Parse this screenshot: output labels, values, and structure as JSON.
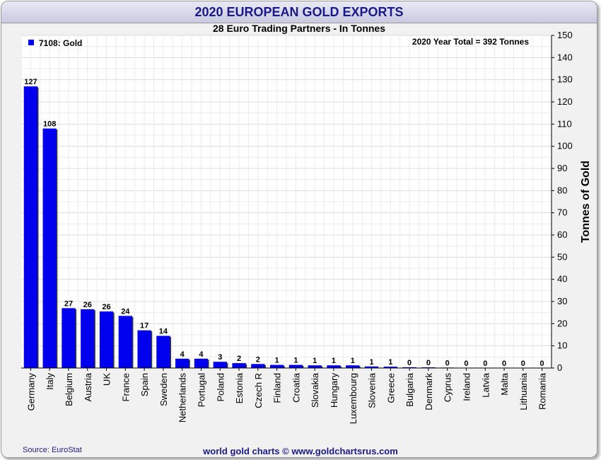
{
  "chart_data": {
    "type": "bar",
    "title": "2020 EUROPEAN GOLD EXPORTS",
    "subtitle": "28 Euro Trading Partners - In Tonnes",
    "ylabel": "Tonnes of Gold",
    "ylim": [
      0,
      150
    ],
    "yticks": [
      0,
      10,
      20,
      30,
      40,
      50,
      60,
      70,
      80,
      90,
      100,
      110,
      120,
      130,
      140,
      150
    ],
    "grid": true,
    "legend_position": "top-left",
    "categories": [
      "Germany",
      "Italy",
      "Belgium",
      "Austria",
      "UK",
      "France",
      "Spain",
      "Sweden",
      "Netherlands",
      "Portugal",
      "Poland",
      "Estonia",
      "Czech R",
      "Finland",
      "Croatia",
      "Slovakia",
      "Hungary",
      "Luxembourg",
      "Slovenia",
      "Greece",
      "Bulgaria",
      "Denmark",
      "Cyprus",
      "Ireland",
      "Latvia",
      "Malta",
      "Lithuania",
      "Romania"
    ],
    "series": [
      {
        "name": "7108: Gold",
        "color": "#0000ee",
        "values": [
          127,
          108,
          27,
          26,
          26,
          24,
          17,
          14,
          4,
          4,
          3,
          2,
          2,
          1,
          1,
          1,
          1,
          1,
          1,
          1,
          0,
          0,
          0,
          0,
          0,
          0,
          0,
          0
        ],
        "bar_values": [
          127,
          108,
          27,
          26.5,
          25.5,
          23.5,
          17,
          14.5,
          4.2,
          4.2,
          2.8,
          2.2,
          1.8,
          1.4,
          1.4,
          1.2,
          1.2,
          1.2,
          0.7,
          0.6,
          0.35,
          0.3,
          0.2,
          0,
          0,
          0,
          0,
          0
        ]
      }
    ],
    "annotation": "2020 Year Total = 392 Tonnes"
  },
  "footer": {
    "source": "Source: EuroStat",
    "credit": "world gold charts © www.goldchartsrus.com"
  }
}
